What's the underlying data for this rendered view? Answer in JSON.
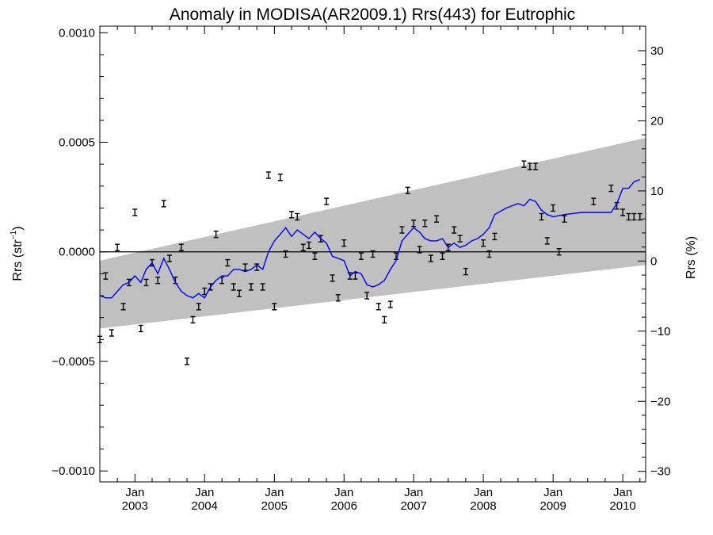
{
  "chart_data": {
    "type": "line",
    "title": "Anomaly in MODISA(AR2009.1) Rrs(443) for Eutrophic",
    "ylabel": "Rrs (str",
    "ylabel_sup": "−1",
    "ylabel_close": ")",
    "y2label": "Rrs (%)",
    "xlim": [
      "2002-07-01",
      "2010-05-01"
    ],
    "ylim": [
      -0.00105,
      0.00103
    ],
    "y2lim": [
      -31.5,
      33.5
    ],
    "y_ticks": [
      {
        "value": 0.001,
        "label": "0.0010"
      },
      {
        "value": 0.0005,
        "label": "0.0005"
      },
      {
        "value": 0,
        "label": "0.0000"
      },
      {
        "value": -0.0005,
        "label": "−0.0005"
      },
      {
        "value": -0.001,
        "label": "−0.0010"
      }
    ],
    "y2_ticks": [
      {
        "value": 30,
        "label": "30"
      },
      {
        "value": 20,
        "label": "20"
      },
      {
        "value": 10,
        "label": "10"
      },
      {
        "value": 0,
        "label": "0"
      },
      {
        "value": -10,
        "label": "−10"
      },
      {
        "value": -20,
        "label": "−20"
      },
      {
        "value": -30,
        "label": "−30"
      }
    ],
    "x_ticks": [
      {
        "date": "2003-01-01",
        "month": "Jan",
        "year": "2003"
      },
      {
        "date": "2004-01-01",
        "month": "Jan",
        "year": "2004"
      },
      {
        "date": "2005-01-01",
        "month": "Jan",
        "year": "2005"
      },
      {
        "date": "2006-01-01",
        "month": "Jan",
        "year": "2006"
      },
      {
        "date": "2007-01-01",
        "month": "Jan",
        "year": "2007"
      },
      {
        "date": "2008-01-01",
        "month": "Jan",
        "year": "2008"
      },
      {
        "date": "2009-01-01",
        "month": "Jan",
        "year": "2009"
      },
      {
        "date": "2010-01-01",
        "month": "Jan",
        "year": "2010"
      }
    ],
    "band": {
      "start": "2002-07-01",
      "end": "2010-05-01",
      "upper": [
        -4e-05,
        0.00052
      ],
      "lower": [
        -0.00035,
        -6e-05
      ]
    },
    "zero_line": 0,
    "colors": {
      "band": "#c0c0c0",
      "running_mean": "#0000ee",
      "points": "#000000"
    },
    "points": [
      {
        "x": "2002-07-01",
        "y": -0.0004
      },
      {
        "x": "2002-08-01",
        "y": -0.00011
      },
      {
        "x": "2002-09-01",
        "y": -0.00037
      },
      {
        "x": "2002-10-01",
        "y": 2e-05
      },
      {
        "x": "2002-11-01",
        "y": -0.00025
      },
      {
        "x": "2002-12-01",
        "y": -0.00014
      },
      {
        "x": "2003-01-01",
        "y": 0.00018
      },
      {
        "x": "2003-02-01",
        "y": -0.00035
      },
      {
        "x": "2003-03-01",
        "y": -0.00014
      },
      {
        "x": "2003-04-01",
        "y": -5e-05
      },
      {
        "x": "2003-05-01",
        "y": -0.00013
      },
      {
        "x": "2003-06-01",
        "y": 0.00022
      },
      {
        "x": "2003-07-01",
        "y": -3e-05
      },
      {
        "x": "2003-08-01",
        "y": -0.00013
      },
      {
        "x": "2003-09-01",
        "y": 2e-05
      },
      {
        "x": "2003-10-01",
        "y": -0.0005
      },
      {
        "x": "2003-11-01",
        "y": -0.00031
      },
      {
        "x": "2003-12-01",
        "y": -0.00025
      },
      {
        "x": "2004-01-01",
        "y": -0.00018
      },
      {
        "x": "2004-02-01",
        "y": -0.00016
      },
      {
        "x": "2004-03-01",
        "y": 8e-05
      },
      {
        "x": "2004-04-01",
        "y": -0.00013
      },
      {
        "x": "2004-05-01",
        "y": -5e-05
      },
      {
        "x": "2004-06-01",
        "y": -0.00016
      },
      {
        "x": "2004-07-01",
        "y": -0.00019
      },
      {
        "x": "2004-08-01",
        "y": -7e-05
      },
      {
        "x": "2004-09-01",
        "y": -0.00016
      },
      {
        "x": "2004-10-01",
        "y": -7e-05
      },
      {
        "x": "2004-11-01",
        "y": -0.00016
      },
      {
        "x": "2004-12-01",
        "y": 0.00035
      },
      {
        "x": "2005-01-01",
        "y": -0.00025
      },
      {
        "x": "2005-02-01",
        "y": 0.00034
      },
      {
        "x": "2005-03-01",
        "y": -1e-05
      },
      {
        "x": "2005-04-01",
        "y": 0.00017
      },
      {
        "x": "2005-05-01",
        "y": 0.00016
      },
      {
        "x": "2005-06-01",
        "y": 2e-05
      },
      {
        "x": "2005-07-01",
        "y": 3e-05
      },
      {
        "x": "2005-08-01",
        "y": -2e-05
      },
      {
        "x": "2005-09-01",
        "y": 6e-05
      },
      {
        "x": "2005-10-01",
        "y": 0.00023
      },
      {
        "x": "2005-11-01",
        "y": -0.00012
      },
      {
        "x": "2005-12-01",
        "y": -0.00021
      },
      {
        "x": "2006-01-01",
        "y": 4e-05
      },
      {
        "x": "2006-02-01",
        "y": -0.00011
      },
      {
        "x": "2006-03-01",
        "y": -0.00011
      },
      {
        "x": "2006-04-01",
        "y": -2e-05
      },
      {
        "x": "2006-05-01",
        "y": -0.0002
      },
      {
        "x": "2006-06-01",
        "y": -1e-05
      },
      {
        "x": "2006-07-01",
        "y": -0.00025
      },
      {
        "x": "2006-08-01",
        "y": -0.00031
      },
      {
        "x": "2006-09-01",
        "y": -0.00024
      },
      {
        "x": "2006-10-01",
        "y": -2e-05
      },
      {
        "x": "2006-11-01",
        "y": 0.0001
      },
      {
        "x": "2006-12-01",
        "y": 0.00028
      },
      {
        "x": "2007-01-01",
        "y": 0.00013
      },
      {
        "x": "2007-02-01",
        "y": 1e-05
      },
      {
        "x": "2007-03-01",
        "y": 0.00013
      },
      {
        "x": "2007-04-01",
        "y": -3e-05
      },
      {
        "x": "2007-05-01",
        "y": 0.00015
      },
      {
        "x": "2007-06-01",
        "y": -2e-05
      },
      {
        "x": "2007-07-01",
        "y": 2e-05
      },
      {
        "x": "2007-08-01",
        "y": 0.0001
      },
      {
        "x": "2007-09-01",
        "y": 6e-05
      },
      {
        "x": "2007-10-01",
        "y": -9e-05
      },
      {
        "x": "2008-01-01",
        "y": 4e-05
      },
      {
        "x": "2008-02-01",
        "y": -1e-05
      },
      {
        "x": "2008-03-01",
        "y": 7e-05
      },
      {
        "x": "2008-08-01",
        "y": 0.0004
      },
      {
        "x": "2008-09-01",
        "y": 0.00039
      },
      {
        "x": "2008-10-01",
        "y": 0.00039
      },
      {
        "x": "2008-11-01",
        "y": 0.00016
      },
      {
        "x": "2008-12-01",
        "y": 5e-05
      },
      {
        "x": "2009-01-01",
        "y": 0.0002
      },
      {
        "x": "2009-02-01",
        "y": 0.0
      },
      {
        "x": "2009-03-01",
        "y": 0.00015
      },
      {
        "x": "2009-08-01",
        "y": 0.00023
      },
      {
        "x": "2009-11-01",
        "y": 0.00029
      },
      {
        "x": "2009-12-01",
        "y": 0.00021
      },
      {
        "x": "2010-01-01",
        "y": 0.00018
      },
      {
        "x": "2010-02-01",
        "y": 0.00016
      },
      {
        "x": "2010-03-01",
        "y": 0.00016
      },
      {
        "x": "2010-04-01",
        "y": 0.00016
      }
    ],
    "running_mean": [
      {
        "x": "2002-07-01",
        "y": -0.0002
      },
      {
        "x": "2002-08-01",
        "y": -0.00021
      },
      {
        "x": "2002-09-01",
        "y": -0.00021
      },
      {
        "x": "2002-10-01",
        "y": -0.00018
      },
      {
        "x": "2002-11-01",
        "y": -0.00015
      },
      {
        "x": "2002-12-01",
        "y": -0.00014
      },
      {
        "x": "2003-01-01",
        "y": -0.00011
      },
      {
        "x": "2003-02-01",
        "y": -0.00014
      },
      {
        "x": "2003-03-01",
        "y": -8e-05
      },
      {
        "x": "2003-04-01",
        "y": -5e-05
      },
      {
        "x": "2003-05-01",
        "y": -0.0001
      },
      {
        "x": "2003-06-01",
        "y": -3e-05
      },
      {
        "x": "2003-07-01",
        "y": -8e-05
      },
      {
        "x": "2003-08-01",
        "y": -0.00014
      },
      {
        "x": "2003-09-01",
        "y": -0.00018
      },
      {
        "x": "2003-10-01",
        "y": -0.0002
      },
      {
        "x": "2003-11-01",
        "y": -0.00021
      },
      {
        "x": "2003-12-01",
        "y": -0.00019
      },
      {
        "x": "2004-01-01",
        "y": -0.00021
      },
      {
        "x": "2004-02-01",
        "y": -0.00016
      },
      {
        "x": "2004-03-01",
        "y": -0.00013
      },
      {
        "x": "2004-04-01",
        "y": -0.00011
      },
      {
        "x": "2004-05-01",
        "y": -0.00011
      },
      {
        "x": "2004-06-01",
        "y": -8e-05
      },
      {
        "x": "2004-07-01",
        "y": -8e-05
      },
      {
        "x": "2004-08-01",
        "y": -9e-05
      },
      {
        "x": "2004-09-01",
        "y": -8e-05
      },
      {
        "x": "2004-10-01",
        "y": -6e-05
      },
      {
        "x": "2004-11-01",
        "y": -8e-05
      },
      {
        "x": "2004-12-01",
        "y": 0.0
      },
      {
        "x": "2005-01-01",
        "y": 5e-05
      },
      {
        "x": "2005-02-01",
        "y": 8e-05
      },
      {
        "x": "2005-03-01",
        "y": 0.00011
      },
      {
        "x": "2005-04-01",
        "y": 7e-05
      },
      {
        "x": "2005-05-01",
        "y": 0.0001
      },
      {
        "x": "2005-06-01",
        "y": 8e-05
      },
      {
        "x": "2005-07-01",
        "y": 6e-05
      },
      {
        "x": "2005-08-01",
        "y": 9e-05
      },
      {
        "x": "2005-09-01",
        "y": 6e-05
      },
      {
        "x": "2005-10-01",
        "y": 4e-05
      },
      {
        "x": "2005-11-01",
        "y": -2e-05
      },
      {
        "x": "2005-12-01",
        "y": -3e-05
      },
      {
        "x": "2006-01-01",
        "y": -4e-05
      },
      {
        "x": "2006-02-01",
        "y": -0.00011
      },
      {
        "x": "2006-03-01",
        "y": -9e-05
      },
      {
        "x": "2006-04-01",
        "y": -0.0001
      },
      {
        "x": "2006-05-01",
        "y": -0.00015
      },
      {
        "x": "2006-06-01",
        "y": -0.00016
      },
      {
        "x": "2006-07-01",
        "y": -0.00015
      },
      {
        "x": "2006-08-01",
        "y": -0.00013
      },
      {
        "x": "2006-09-01",
        "y": -8e-05
      },
      {
        "x": "2006-10-01",
        "y": -4e-05
      },
      {
        "x": "2006-11-01",
        "y": 5e-05
      },
      {
        "x": "2006-12-01",
        "y": 8e-05
      },
      {
        "x": "2007-01-01",
        "y": 0.00011
      },
      {
        "x": "2007-02-01",
        "y": 9e-05
      },
      {
        "x": "2007-03-01",
        "y": 6e-05
      },
      {
        "x": "2007-04-01",
        "y": 5e-05
      },
      {
        "x": "2007-05-01",
        "y": 5e-05
      },
      {
        "x": "2007-06-01",
        "y": 6e-05
      },
      {
        "x": "2007-07-01",
        "y": 2e-05
      },
      {
        "x": "2007-08-01",
        "y": 4e-05
      },
      {
        "x": "2007-09-01",
        "y": 2e-05
      },
      {
        "x": "2007-10-01",
        "y": 3e-05
      },
      {
        "x": "2007-11-01",
        "y": 5e-05
      },
      {
        "x": "2007-12-01",
        "y": 6e-05
      },
      {
        "x": "2008-01-01",
        "y": 8e-05
      },
      {
        "x": "2008-02-01",
        "y": 0.00011
      },
      {
        "x": "2008-03-01",
        "y": 0.00017
      },
      {
        "x": "2008-05-01",
        "y": 0.0002
      },
      {
        "x": "2008-07-01",
        "y": 0.00022
      },
      {
        "x": "2008-08-01",
        "y": 0.00021
      },
      {
        "x": "2008-09-01",
        "y": 0.00024
      },
      {
        "x": "2008-10-01",
        "y": 0.00023
      },
      {
        "x": "2008-11-01",
        "y": 0.00019
      },
      {
        "x": "2008-12-01",
        "y": 0.00017
      },
      {
        "x": "2009-01-01",
        "y": 0.00016
      },
      {
        "x": "2009-03-01",
        "y": 0.00017
      },
      {
        "x": "2009-06-01",
        "y": 0.00018
      },
      {
        "x": "2009-09-01",
        "y": 0.00018
      },
      {
        "x": "2009-11-01",
        "y": 0.00018
      },
      {
        "x": "2009-12-01",
        "y": 0.00022
      },
      {
        "x": "2010-01-01",
        "y": 0.00029
      },
      {
        "x": "2010-02-01",
        "y": 0.00029
      },
      {
        "x": "2010-03-01",
        "y": 0.00032
      },
      {
        "x": "2010-04-01",
        "y": 0.00033
      }
    ]
  }
}
